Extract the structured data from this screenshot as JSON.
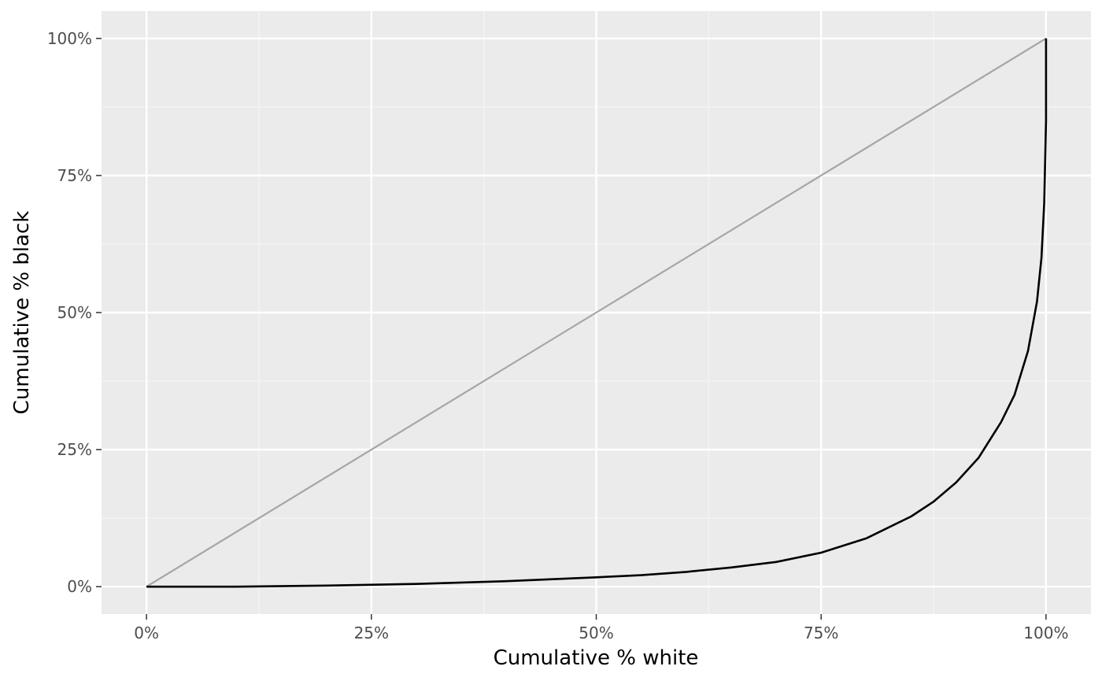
{
  "chart_data": {
    "type": "line",
    "title": "",
    "xlabel": "Cumulative %  white",
    "ylabel": "Cumulative %  black",
    "xlim": [
      -0.05,
      1.05
    ],
    "ylim": [
      -0.05,
      1.05
    ],
    "x_ticks": [
      0,
      0.25,
      0.5,
      0.75,
      1.0
    ],
    "x_tick_labels": [
      "0%",
      "25%",
      "50%",
      "75%",
      "100%"
    ],
    "y_ticks": [
      0,
      0.25,
      0.5,
      0.75,
      1.0
    ],
    "y_tick_labels": [
      "0%",
      "25%",
      "50%",
      "75%",
      "100%"
    ],
    "grid": true,
    "legend": "none",
    "colors": {
      "panel_background": "#ebebeb",
      "grid_major": "#ffffff",
      "grid_minor": "#f5f5f5",
      "reference_line": "#a6a6a6",
      "curve": "#000000",
      "tick_text": "#4d4d4d"
    },
    "series": [
      {
        "role": "reference",
        "x": [
          0,
          1
        ],
        "y": [
          0,
          1
        ]
      },
      {
        "role": "curve",
        "x": [
          0,
          0.1,
          0.2,
          0.3,
          0.4,
          0.5,
          0.55,
          0.6,
          0.65,
          0.7,
          0.75,
          0.8,
          0.85,
          0.875,
          0.9,
          0.925,
          0.95,
          0.965,
          0.98,
          0.99,
          0.995,
          0.998,
          1.0,
          1.0
        ],
        "y": [
          0,
          0.0,
          0.002,
          0.005,
          0.01,
          0.017,
          0.021,
          0.027,
          0.035,
          0.045,
          0.062,
          0.088,
          0.128,
          0.155,
          0.19,
          0.235,
          0.3,
          0.35,
          0.43,
          0.52,
          0.6,
          0.7,
          0.85,
          1.0
        ]
      }
    ]
  }
}
